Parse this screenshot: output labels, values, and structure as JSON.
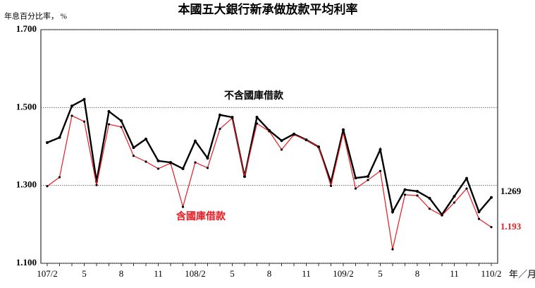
{
  "chart_data": {
    "type": "line",
    "title": "本國五大銀行新承做放款平均利率",
    "y_label": "年息百分比率， %",
    "x_label": "年／月",
    "categories": [
      "107/2",
      null,
      null,
      "5",
      null,
      null,
      "8",
      null,
      null,
      "11",
      null,
      null,
      "108/2",
      null,
      null,
      "5",
      null,
      null,
      "8",
      null,
      null,
      "11",
      null,
      null,
      "109/2",
      null,
      null,
      "5",
      null,
      null,
      "8",
      null,
      null,
      "11",
      null,
      null,
      "110/2"
    ],
    "series": [
      {
        "name": "不含國庫借款",
        "color": "#000000",
        "values": [
          1.41,
          1.423,
          1.504,
          1.521,
          1.31,
          1.49,
          1.466,
          1.397,
          1.419,
          1.363,
          1.359,
          1.343,
          1.414,
          1.37,
          1.481,
          1.475,
          1.323,
          1.475,
          1.441,
          1.415,
          1.432,
          1.417,
          1.399,
          1.308,
          1.443,
          1.319,
          1.323,
          1.392,
          1.232,
          1.289,
          1.285,
          1.267,
          1.225,
          1.272,
          1.318,
          1.232,
          1.269
        ]
      },
      {
        "name": "含國庫借款",
        "color": "#e8191f",
        "values": [
          1.298,
          1.321,
          1.479,
          1.464,
          1.301,
          1.457,
          1.45,
          1.376,
          1.361,
          1.343,
          1.357,
          1.245,
          1.359,
          1.345,
          1.445,
          1.473,
          1.323,
          1.459,
          1.439,
          1.392,
          1.43,
          1.417,
          1.399,
          1.299,
          1.435,
          1.292,
          1.314,
          1.337,
          1.136,
          1.276,
          1.274,
          1.24,
          1.223,
          1.256,
          1.292,
          1.214,
          1.193
        ]
      }
    ],
    "ylim": [
      1.1,
      1.7
    ],
    "yticks": [
      {
        "value": 1.1,
        "label": "1.100"
      },
      {
        "value": 1.3,
        "label": "1.300"
      },
      {
        "value": 1.5,
        "label": "1.500"
      },
      {
        "value": 1.7,
        "label": "1.700"
      }
    ],
    "grid": true
  }
}
